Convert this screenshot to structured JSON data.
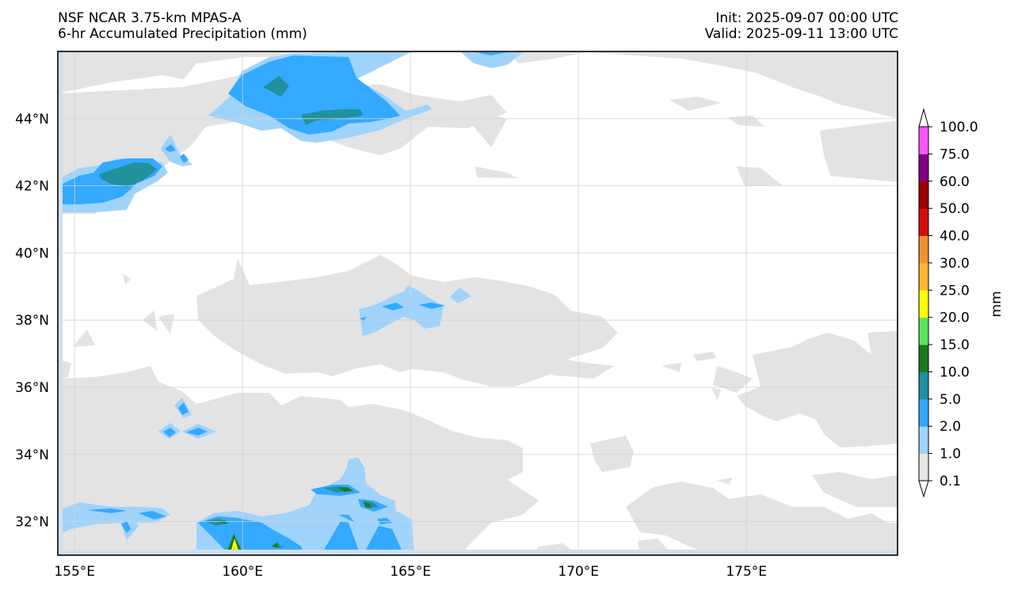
{
  "header": {
    "model": "NSF NCAR 3.75-km MPAS-A",
    "field": "6-hr Accumulated Precipitation (mm)",
    "init": "Init: 2025-09-07 00:00 UTC",
    "valid": "Valid: 2025-09-11 13:00 UTC"
  },
  "map": {
    "lon_range": [
      154.5,
      179.5
    ],
    "lat_range": [
      31.0,
      46.0
    ],
    "lon_ticks": [
      "155°E",
      "160°E",
      "165°E",
      "170°E",
      "175°E"
    ],
    "lat_ticks": [
      "32°N",
      "34°N",
      "36°N",
      "38°N",
      "40°N",
      "42°N",
      "44°N"
    ],
    "gridlines": true
  },
  "colorbar": {
    "label": "mm",
    "levels": [
      "0.1",
      "1.0",
      "2.0",
      "5.0",
      "10.0",
      "15.0",
      "20.0",
      "25.0",
      "30.0",
      "40.0",
      "50.0",
      "60.0",
      "75.0",
      "100.0"
    ],
    "colors": [
      "#e6e6e6",
      "#9fd3fb",
      "#30a8ff",
      "#208f9f",
      "#1b7a1b",
      "#5ce65c",
      "#ffff00",
      "#ffb732",
      "#f29130",
      "#d60d0d",
      "#9c0000",
      "#800080",
      "#ff55ff"
    ]
  },
  "colors": {
    "trace": "#e3e3e3",
    "light_blue": "#9fd3fb",
    "blue": "#33a9ff",
    "teal": "#21919e",
    "dark_green": "#1f7a1f",
    "yellow": "#ffff00",
    "orange": "#ffb732"
  }
}
